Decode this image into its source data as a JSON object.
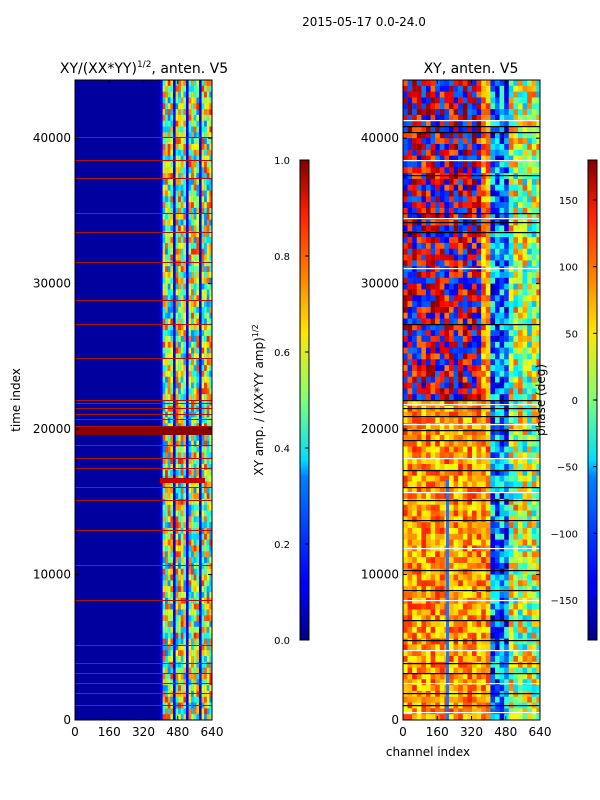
{
  "figure": {
    "suptitle": "2015-05-17 0.0-24.0"
  },
  "chart_data": [
    {
      "type": "heatmap",
      "title": "XY/(XX*YY)",
      "title_exp": "1/2",
      "title_suffix": ", anten. V5",
      "xlabel": "",
      "ylabel": "time index",
      "xlim": [
        0,
        640
      ],
      "ylim": [
        0,
        44000
      ],
      "xticks": [
        0,
        160,
        320,
        480,
        640
      ],
      "yticks": [
        0,
        10000,
        20000,
        30000,
        40000
      ],
      "colormap": "jet",
      "colorbar": {
        "label": "XY amp. / (XX*YY amp)",
        "label_exp": "1/2",
        "range": [
          0.0,
          1.0
        ],
        "ticks": [
          0.0,
          0.2,
          0.4,
          0.6,
          0.8,
          1.0
        ],
        "tick_labels": [
          "0.0",
          "0.2",
          "0.4",
          "0.6",
          "0.8",
          "1.0"
        ]
      }
    },
    {
      "type": "heatmap",
      "title": "XY, anten. V5",
      "xlabel": "channel index",
      "ylabel": "",
      "xlim": [
        0,
        640
      ],
      "ylim": [
        0,
        44000
      ],
      "xticks": [
        0,
        160,
        320,
        480,
        640
      ],
      "yticks": [
        0,
        10000,
        20000,
        30000,
        40000
      ],
      "colormap": "jet",
      "colorbar": {
        "label": "phase (deg)",
        "range": [
          -180,
          180
        ],
        "ticks": [
          -150,
          -100,
          -50,
          0,
          50,
          100,
          150
        ],
        "tick_labels": [
          "−150",
          "−100",
          "−50",
          "0",
          "50",
          "100",
          "150"
        ]
      }
    }
  ]
}
